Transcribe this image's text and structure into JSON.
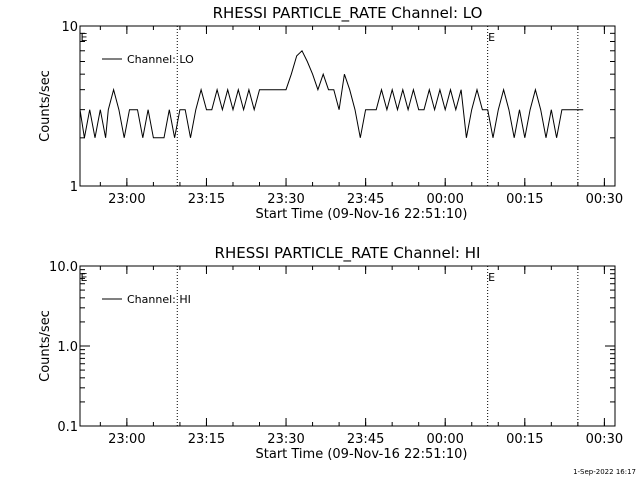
{
  "footer": {
    "timestamp": "1-Sep-2022 16:17"
  },
  "chart_data": [
    {
      "type": "line",
      "title": "RHESSI PARTICLE_RATE Channel: LO",
      "xlabel": "Start Time (09-Nov-16 22:51:10)",
      "ylabel": "Counts/sec",
      "y_scale": "log",
      "ylim": [
        1,
        10
      ],
      "y_ticks": [
        {
          "value": 1,
          "label": "1"
        },
        {
          "value": 10,
          "label": "10"
        }
      ],
      "xlim": [
        "22:51:10",
        "00:32:00"
      ],
      "x_ticks": [
        {
          "time": "23:00",
          "label": "23:00"
        },
        {
          "time": "23:15",
          "label": "23:15"
        },
        {
          "time": "23:30",
          "label": "23:30"
        },
        {
          "time": "23:45",
          "label": "23:45"
        },
        {
          "time": "00:00",
          "label": "00:00"
        },
        {
          "time": "00:15",
          "label": "00:15"
        },
        {
          "time": "00:30",
          "label": "00:30"
        }
      ],
      "vertical_markers": [
        "23:09:30",
        "00:08:00",
        "00:25:00"
      ],
      "marker_labels": [
        {
          "time": "22:51:10",
          "label": "E"
        },
        {
          "time": "00:08:00",
          "label": "E"
        }
      ],
      "legend": {
        "position": "top-left",
        "entries": [
          "Channel: LO"
        ]
      },
      "series": [
        {
          "name": "Channel: LO",
          "points": [
            [
              "22:51:10",
              3
            ],
            [
              "22:52:00",
              2
            ],
            [
              "22:53:00",
              3
            ],
            [
              "22:54:00",
              2
            ],
            [
              "22:55:00",
              3
            ],
            [
              "22:56:00",
              2
            ],
            [
              "22:56:30",
              3
            ],
            [
              "22:57:30",
              4
            ],
            [
              "22:58:30",
              3
            ],
            [
              "22:59:30",
              2
            ],
            [
              "23:00:30",
              3
            ],
            [
              "23:02:00",
              3
            ],
            [
              "23:03:00",
              2
            ],
            [
              "23:04:00",
              3
            ],
            [
              "23:05:00",
              2
            ],
            [
              "23:06:00",
              2
            ],
            [
              "23:07:00",
              2
            ],
            [
              "23:08:00",
              3
            ],
            [
              "23:09:00",
              2
            ],
            [
              "23:10:00",
              3
            ],
            [
              "23:11:00",
              3
            ],
            [
              "23:12:00",
              2
            ],
            [
              "23:13:00",
              3
            ],
            [
              "23:14:00",
              4
            ],
            [
              "23:15:00",
              3
            ],
            [
              "23:16:00",
              3
            ],
            [
              "23:17:00",
              4
            ],
            [
              "23:18:00",
              3
            ],
            [
              "23:19:00",
              4
            ],
            [
              "23:20:00",
              3
            ],
            [
              "23:21:00",
              4
            ],
            [
              "23:22:00",
              3
            ],
            [
              "23:23:00",
              4
            ],
            [
              "23:24:00",
              3
            ],
            [
              "23:25:00",
              4
            ],
            [
              "23:26:00",
              4
            ],
            [
              "23:27:00",
              4
            ],
            [
              "23:28:00",
              4
            ],
            [
              "23:29:00",
              4
            ],
            [
              "23:30:00",
              4
            ],
            [
              "23:31:00",
              5
            ],
            [
              "23:32:00",
              6.5
            ],
            [
              "23:33:00",
              7
            ],
            [
              "23:34:00",
              6
            ],
            [
              "23:35:00",
              5
            ],
            [
              "23:36:00",
              4
            ],
            [
              "23:37:00",
              5
            ],
            [
              "23:38:00",
              4
            ],
            [
              "23:39:00",
              4
            ],
            [
              "23:40:00",
              3
            ],
            [
              "23:41:00",
              5
            ],
            [
              "23:42:00",
              4
            ],
            [
              "23:43:00",
              3
            ],
            [
              "23:44:00",
              2
            ],
            [
              "23:45:00",
              3
            ],
            [
              "23:46:00",
              3
            ],
            [
              "23:47:00",
              3
            ],
            [
              "23:48:00",
              4
            ],
            [
              "23:49:00",
              3
            ],
            [
              "23:50:00",
              4
            ],
            [
              "23:51:00",
              3
            ],
            [
              "23:52:00",
              4
            ],
            [
              "23:53:00",
              3
            ],
            [
              "23:54:00",
              4
            ],
            [
              "23:55:00",
              3
            ],
            [
              "23:56:00",
              3
            ],
            [
              "23:57:00",
              4
            ],
            [
              "23:58:00",
              3
            ],
            [
              "23:59:00",
              4
            ],
            [
              "00:00:00",
              3
            ],
            [
              "00:01:00",
              4
            ],
            [
              "00:02:00",
              3
            ],
            [
              "00:03:00",
              4
            ],
            [
              "00:04:00",
              2
            ],
            [
              "00:05:00",
              3
            ],
            [
              "00:06:00",
              4
            ],
            [
              "00:07:00",
              3
            ],
            [
              "00:08:00",
              3
            ],
            [
              "00:09:00",
              2
            ],
            [
              "00:10:00",
              3
            ],
            [
              "00:11:00",
              4
            ],
            [
              "00:12:00",
              3
            ],
            [
              "00:13:00",
              2
            ],
            [
              "00:14:00",
              3
            ],
            [
              "00:15:00",
              2
            ],
            [
              "00:16:00",
              3
            ],
            [
              "00:17:00",
              4
            ],
            [
              "00:18:00",
              3
            ],
            [
              "00:19:00",
              2
            ],
            [
              "00:20:00",
              3
            ],
            [
              "00:21:00",
              2
            ],
            [
              "00:22:00",
              3
            ],
            [
              "00:23:00",
              3
            ],
            [
              "00:24:00",
              3
            ],
            [
              "00:25:00",
              3
            ],
            [
              "00:26:00",
              3
            ]
          ]
        }
      ]
    },
    {
      "type": "line",
      "title": "RHESSI PARTICLE_RATE Channel: HI",
      "xlabel": "Start Time (09-Nov-16 22:51:10)",
      "ylabel": "Counts/sec",
      "y_scale": "log",
      "ylim": [
        0.1,
        10
      ],
      "y_ticks": [
        {
          "value": 0.1,
          "label": "0.1"
        },
        {
          "value": 1,
          "label": "1.0"
        },
        {
          "value": 10,
          "label": "10.0"
        }
      ],
      "xlim": [
        "22:51:10",
        "00:32:00"
      ],
      "x_ticks": [
        {
          "time": "23:00",
          "label": "23:00"
        },
        {
          "time": "23:15",
          "label": "23:15"
        },
        {
          "time": "23:30",
          "label": "23:30"
        },
        {
          "time": "23:45",
          "label": "23:45"
        },
        {
          "time": "00:00",
          "label": "00:00"
        },
        {
          "time": "00:15",
          "label": "00:15"
        },
        {
          "time": "00:30",
          "label": "00:30"
        }
      ],
      "vertical_markers": [
        "23:09:30",
        "00:08:00",
        "00:25:00"
      ],
      "marker_labels": [
        {
          "time": "22:51:10",
          "label": "E"
        },
        {
          "time": "00:08:00",
          "label": "E"
        }
      ],
      "legend": {
        "position": "top-left",
        "entries": [
          "Channel: HI"
        ]
      },
      "series": [
        {
          "name": "Channel: HI",
          "points": []
        }
      ]
    }
  ]
}
